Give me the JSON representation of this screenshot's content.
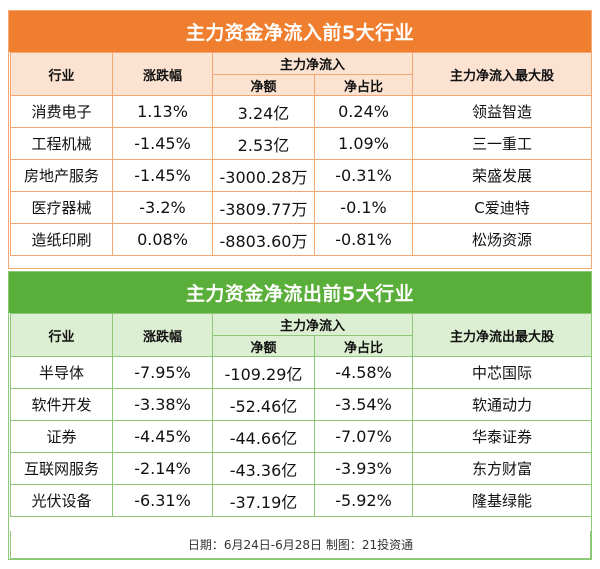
{
  "inflow": {
    "title": "主力资金净流入前5大行业",
    "headers": {
      "industry": "行业",
      "change": "涨跌幅",
      "main_net": "主力净流入",
      "net_amount": "净额",
      "net_ratio": "净占比",
      "top_stock": "主力净流入最大股"
    },
    "rows": [
      {
        "industry": "消费电子",
        "change": "1.13%",
        "amount": "3.24亿",
        "ratio": "0.24%",
        "stock": "领益智造"
      },
      {
        "industry": "工程机械",
        "change": "-1.45%",
        "amount": "2.53亿",
        "ratio": "1.09%",
        "stock": "三一重工"
      },
      {
        "industry": "房地产服务",
        "change": "-1.45%",
        "amount": "-3000.28万",
        "ratio": "-0.31%",
        "stock": "荣盛发展"
      },
      {
        "industry": "医疗器械",
        "change": "-3.2%",
        "amount": "-3809.77万",
        "ratio": "-0.1%",
        "stock": "C爱迪特"
      },
      {
        "industry": "造纸印刷",
        "change": "0.08%",
        "amount": "-8803.60万",
        "ratio": "-0.81%",
        "stock": "松炀资源"
      }
    ]
  },
  "outflow": {
    "title": "主力资金净流出前5大行业",
    "headers": {
      "industry": "行业",
      "change": "涨跌幅",
      "main_net": "主力净流入",
      "net_amount": "净额",
      "net_ratio": "净占比",
      "top_stock": "主力净流出最大股"
    },
    "rows": [
      {
        "industry": "半导体",
        "change": "-7.95%",
        "amount": "-109.29亿",
        "ratio": "-4.58%",
        "stock": "中芯国际"
      },
      {
        "industry": "软件开发",
        "change": "-3.38%",
        "amount": "-52.46亿",
        "ratio": "-3.54%",
        "stock": "软通动力"
      },
      {
        "industry": "证券",
        "change": "-4.45%",
        "amount": "-44.66亿",
        "ratio": "-7.07%",
        "stock": "华泰证券"
      },
      {
        "industry": "互联网服务",
        "change": "-2.14%",
        "amount": "-43.36亿",
        "ratio": "-3.93%",
        "stock": "东方财富"
      },
      {
        "industry": "光伏设备",
        "change": "-6.31%",
        "amount": "-37.19亿",
        "ratio": "-5.92%",
        "stock": "隆基绿能"
      }
    ]
  },
  "footer": "日期：6月24日-6月28日 制图：21投资通",
  "colors": {
    "inflow_header": "#ef7f2e",
    "inflow_subheader": "#fbe2d1",
    "outflow_header": "#5aae3a",
    "outflow_subheader": "#dcefd2"
  }
}
